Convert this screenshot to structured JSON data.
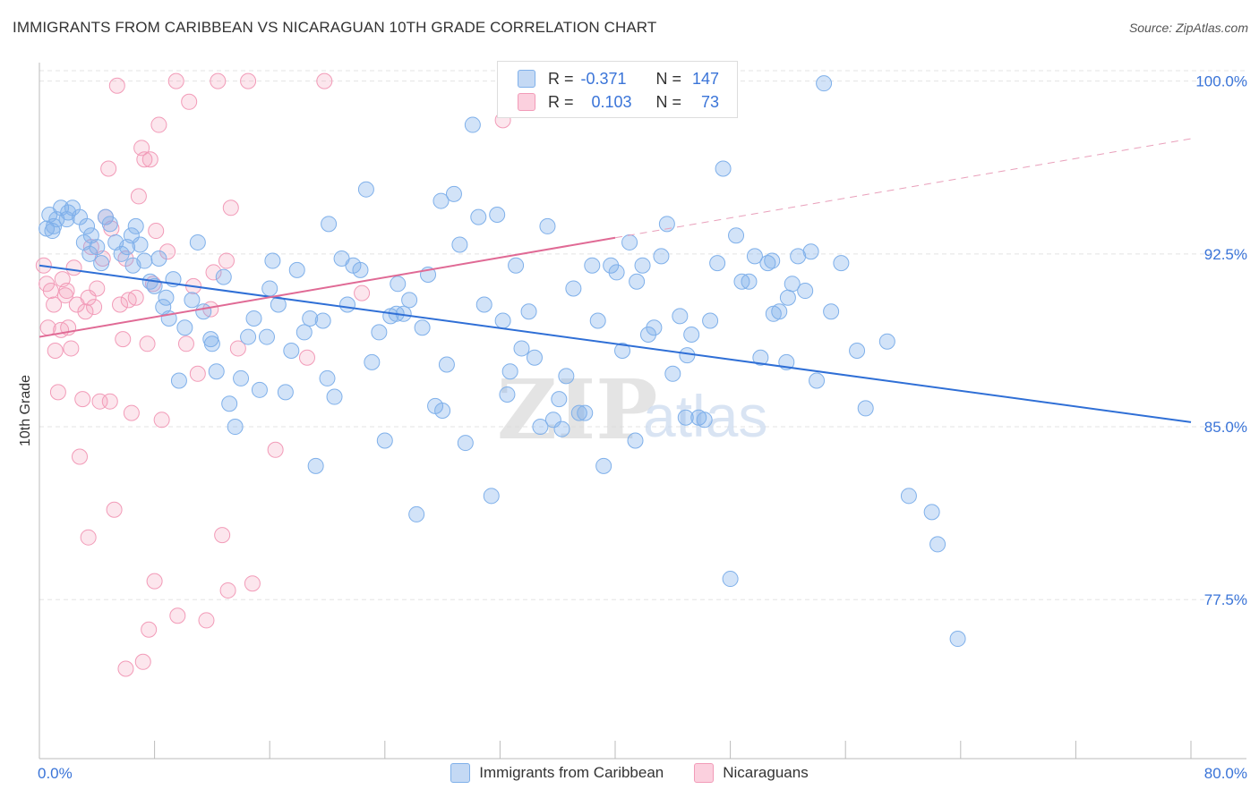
{
  "header": {
    "title": "IMMIGRANTS FROM CARIBBEAN VS NICARAGUAN 10TH GRADE CORRELATION CHART",
    "source": "Source: ZipAtlas.com"
  },
  "watermark": {
    "zip": "ZIP",
    "atlas": "atlas"
  },
  "stats_box": {
    "rows": [
      {
        "r_label": "R =",
        "r_value": "-0.371",
        "n_label": "N =",
        "n_value": "147",
        "color": "#7fb0ea"
      },
      {
        "r_label": "R =",
        "r_value": "0.103",
        "n_label": "N =",
        "n_value": "73",
        "color": "#f29bb8"
      }
    ]
  },
  "legend": {
    "items": [
      {
        "label": "Immigrants from Caribbean",
        "color": "#7fb0ea"
      },
      {
        "label": "Nicaraguans",
        "color": "#f29bb8"
      }
    ]
  },
  "chart_data": {
    "type": "scatter",
    "title": "IMMIGRANTS FROM CARIBBEAN VS NICARAGUAN 10TH GRADE CORRELATION CHART",
    "xlabel": "",
    "ylabel": "10th Grade",
    "xlim": [
      0,
      80
    ],
    "ylim": [
      70.6,
      100.8
    ],
    "x_tick_labels": [
      "0.0%",
      "80.0%"
    ],
    "y_ticks": [
      77.5,
      85.0,
      92.5,
      100.0
    ],
    "y_tick_labels": [
      "77.5%",
      "85.0%",
      "92.5%",
      "100.0%"
    ],
    "grid": true,
    "legend_position": "bottom",
    "series": [
      {
        "name": "Immigrants from Caribbean",
        "color": "#7fb0ea",
        "trend": {
          "x": [
            0,
            80
          ],
          "y": [
            92.0,
            85.2
          ],
          "dashed_extension": false
        },
        "points": [
          [
            0.5,
            93.6
          ],
          [
            0.7,
            94.2
          ],
          [
            0.9,
            93.5
          ],
          [
            1.2,
            94.0
          ],
          [
            1.5,
            94.5
          ],
          [
            1.9,
            94.0
          ],
          [
            2.3,
            94.5
          ],
          [
            2.8,
            94.1
          ],
          [
            3.1,
            93.0
          ],
          [
            3.3,
            93.7
          ],
          [
            3.6,
            93.3
          ],
          [
            4.0,
            92.8
          ],
          [
            4.3,
            92.1
          ],
          [
            4.6,
            94.1
          ],
          [
            4.9,
            93.8
          ],
          [
            5.3,
            93.0
          ],
          [
            5.7,
            92.5
          ],
          [
            6.1,
            92.8
          ],
          [
            6.4,
            93.3
          ],
          [
            6.7,
            93.7
          ],
          [
            7.0,
            92.9
          ],
          [
            7.3,
            92.2
          ],
          [
            7.7,
            91.3
          ],
          [
            8.0,
            91.1
          ],
          [
            8.3,
            92.3
          ],
          [
            8.6,
            90.2
          ],
          [
            9.0,
            89.7
          ],
          [
            9.3,
            91.4
          ],
          [
            9.7,
            87.0
          ],
          [
            10.1,
            89.3
          ],
          [
            10.6,
            90.5
          ],
          [
            11.0,
            93.0
          ],
          [
            11.4,
            90.0
          ],
          [
            11.9,
            88.8
          ],
          [
            12.3,
            87.4
          ],
          [
            12.8,
            91.5
          ],
          [
            13.2,
            86.0
          ],
          [
            13.6,
            85.0
          ],
          [
            14.0,
            87.1
          ],
          [
            14.5,
            88.9
          ],
          [
            14.9,
            89.7
          ],
          [
            15.3,
            86.6
          ],
          [
            15.8,
            88.9
          ],
          [
            16.2,
            92.2
          ],
          [
            16.6,
            90.3
          ],
          [
            17.1,
            86.5
          ],
          [
            17.5,
            88.3
          ],
          [
            17.9,
            91.8
          ],
          [
            18.4,
            89.1
          ],
          [
            18.8,
            89.7
          ],
          [
            19.2,
            83.3
          ],
          [
            19.7,
            89.6
          ],
          [
            20.1,
            93.8
          ],
          [
            20.5,
            86.3
          ],
          [
            21.0,
            92.3
          ],
          [
            21.4,
            90.3
          ],
          [
            21.8,
            92.0
          ],
          [
            22.3,
            91.8
          ],
          [
            22.7,
            95.3
          ],
          [
            23.1,
            87.8
          ],
          [
            23.6,
            89.1
          ],
          [
            24.0,
            84.4
          ],
          [
            24.4,
            89.8
          ],
          [
            24.9,
            91.2
          ],
          [
            25.3,
            89.9
          ],
          [
            25.7,
            90.5
          ],
          [
            26.2,
            81.2
          ],
          [
            26.6,
            89.3
          ],
          [
            27.0,
            91.6
          ],
          [
            27.5,
            85.9
          ],
          [
            27.9,
            94.8
          ],
          [
            28.3,
            87.7
          ],
          [
            28.8,
            95.1
          ],
          [
            29.2,
            92.9
          ],
          [
            29.6,
            84.3
          ],
          [
            30.1,
            98.1
          ],
          [
            30.5,
            94.1
          ],
          [
            30.9,
            90.3
          ],
          [
            31.4,
            82.0
          ],
          [
            31.8,
            94.2
          ],
          [
            32.2,
            89.6
          ],
          [
            32.7,
            87.4
          ],
          [
            33.1,
            92.0
          ],
          [
            33.5,
            88.4
          ],
          [
            34.0,
            90.0
          ],
          [
            34.4,
            88.0
          ],
          [
            34.8,
            85.0
          ],
          [
            35.3,
            93.7
          ],
          [
            35.7,
            85.3
          ],
          [
            36.1,
            86.2
          ],
          [
            36.6,
            87.2
          ],
          [
            37.1,
            91.0
          ],
          [
            37.5,
            85.6
          ],
          [
            37.9,
            85.6
          ],
          [
            38.4,
            92.0
          ],
          [
            38.8,
            89.6
          ],
          [
            39.2,
            83.3
          ],
          [
            39.7,
            92.0
          ],
          [
            40.1,
            91.7
          ],
          [
            40.5,
            88.3
          ],
          [
            41.0,
            93.0
          ],
          [
            41.4,
            84.4
          ],
          [
            41.9,
            92.0
          ],
          [
            42.3,
            89.0
          ],
          [
            42.7,
            89.3
          ],
          [
            43.2,
            92.4
          ],
          [
            43.6,
            93.8
          ],
          [
            44.0,
            87.3
          ],
          [
            44.5,
            89.8
          ],
          [
            44.9,
            85.4
          ],
          [
            45.3,
            89.0
          ],
          [
            45.8,
            85.4
          ],
          [
            46.2,
            85.3
          ],
          [
            46.6,
            89.6
          ],
          [
            47.1,
            92.1
          ],
          [
            47.5,
            96.2
          ],
          [
            48.0,
            78.4
          ],
          [
            48.4,
            93.3
          ],
          [
            48.8,
            91.3
          ],
          [
            49.3,
            91.3
          ],
          [
            49.7,
            92.4
          ],
          [
            50.1,
            88.0
          ],
          [
            50.6,
            92.1
          ],
          [
            51.0,
            89.9
          ],
          [
            51.4,
            90.0
          ],
          [
            51.9,
            87.8
          ],
          [
            52.3,
            91.2
          ],
          [
            52.7,
            92.4
          ],
          [
            53.2,
            90.9
          ],
          [
            53.6,
            92.6
          ],
          [
            54.0,
            87.0
          ],
          [
            54.5,
            99.9
          ],
          [
            55.0,
            90.0
          ],
          [
            55.7,
            92.1
          ],
          [
            56.8,
            88.3
          ],
          [
            57.4,
            85.8
          ],
          [
            58.9,
            88.7
          ],
          [
            60.4,
            82.0
          ],
          [
            62.0,
            81.3
          ],
          [
            62.4,
            79.9
          ],
          [
            63.8,
            75.8
          ],
          [
            1.0,
            93.7
          ],
          [
            2.0,
            94.3
          ],
          [
            3.5,
            92.5
          ],
          [
            6.5,
            92.0
          ],
          [
            8.8,
            90.6
          ],
          [
            12.0,
            88.6
          ],
          [
            16.0,
            91.0
          ],
          [
            20.0,
            87.1
          ],
          [
            24.8,
            89.9
          ],
          [
            28.0,
            85.7
          ],
          [
            32.5,
            86.4
          ],
          [
            36.3,
            84.9
          ],
          [
            41.5,
            91.3
          ],
          [
            45.0,
            88.1
          ],
          [
            50.9,
            92.2
          ],
          [
            52.0,
            90.6
          ]
        ]
      },
      {
        "name": "Nicaraguans",
        "color": "#f29bb8",
        "trend": {
          "x": [
            0,
            40
          ],
          "y": [
            88.9,
            93.2
          ],
          "dashed_extension": true,
          "extension_x": [
            40,
            80
          ],
          "extension_y": [
            93.2,
            97.5
          ]
        },
        "points": [
          [
            0.3,
            92.0
          ],
          [
            0.5,
            91.2
          ],
          [
            0.6,
            89.3
          ],
          [
            0.8,
            90.9
          ],
          [
            1.0,
            90.3
          ],
          [
            1.1,
            88.3
          ],
          [
            1.3,
            86.5
          ],
          [
            1.5,
            89.2
          ],
          [
            1.6,
            91.4
          ],
          [
            1.8,
            90.7
          ],
          [
            2.0,
            89.3
          ],
          [
            2.2,
            88.4
          ],
          [
            2.4,
            91.9
          ],
          [
            2.6,
            90.3
          ],
          [
            2.8,
            83.7
          ],
          [
            3.0,
            86.2
          ],
          [
            3.2,
            90.0
          ],
          [
            3.4,
            80.2
          ],
          [
            3.6,
            92.8
          ],
          [
            3.8,
            90.2
          ],
          [
            4.0,
            91.0
          ],
          [
            4.2,
            86.1
          ],
          [
            4.4,
            92.3
          ],
          [
            4.6,
            94.1
          ],
          [
            4.8,
            96.2
          ],
          [
            5.0,
            93.6
          ],
          [
            5.2,
            81.4
          ],
          [
            5.4,
            99.8
          ],
          [
            5.6,
            90.3
          ],
          [
            5.8,
            88.8
          ],
          [
            6.0,
            92.3
          ],
          [
            6.2,
            90.5
          ],
          [
            6.4,
            85.6
          ],
          [
            6.7,
            90.6
          ],
          [
            6.9,
            95.0
          ],
          [
            7.1,
            97.1
          ],
          [
            7.3,
            96.6
          ],
          [
            7.5,
            88.6
          ],
          [
            7.7,
            96.6
          ],
          [
            7.9,
            91.2
          ],
          [
            8.1,
            93.5
          ],
          [
            8.3,
            98.1
          ],
          [
            8.5,
            85.3
          ],
          [
            8.9,
            92.6
          ],
          [
            9.5,
            100.0
          ],
          [
            10.4,
            99.1
          ],
          [
            10.7,
            91.1
          ],
          [
            11.0,
            87.3
          ],
          [
            11.6,
            76.6
          ],
          [
            12.1,
            91.7
          ],
          [
            12.4,
            100.0
          ],
          [
            12.7,
            80.3
          ],
          [
            13.1,
            77.9
          ],
          [
            13.3,
            94.5
          ],
          [
            13.8,
            88.4
          ],
          [
            14.5,
            100.0
          ],
          [
            14.8,
            78.2
          ],
          [
            16.4,
            84.0
          ],
          [
            18.6,
            88.0
          ],
          [
            19.8,
            100.0
          ],
          [
            22.4,
            90.8
          ],
          [
            32.2,
            98.3
          ],
          [
            4.9,
            86.1
          ],
          [
            6.0,
            74.5
          ],
          [
            7.2,
            74.8
          ],
          [
            7.6,
            76.2
          ],
          [
            8.0,
            78.3
          ],
          [
            9.6,
            76.8
          ],
          [
            10.2,
            88.6
          ],
          [
            11.9,
            90.1
          ],
          [
            13.0,
            92.2
          ],
          [
            3.4,
            90.6
          ],
          [
            1.9,
            90.9
          ]
        ]
      }
    ]
  }
}
